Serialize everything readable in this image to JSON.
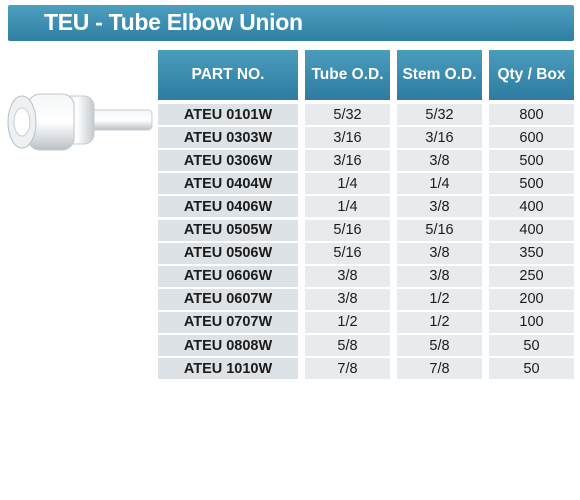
{
  "title": "TEU - Tube Elbow Union",
  "table": {
    "header": [
      "PART NO.",
      "Tube O.D.",
      "Stem O.D.",
      "Qty / Box"
    ],
    "rows": [
      [
        "ATEU 0101W",
        "5/32",
        "5/32",
        800
      ],
      [
        "ATEU 0303W",
        "3/16",
        "3/16",
        600
      ],
      [
        "ATEU 0306W",
        "3/16",
        "3/8",
        500
      ],
      [
        "ATEU 0404W",
        "1/4",
        "1/4",
        500
      ],
      [
        "ATEU 0406W",
        "1/4",
        "3/8",
        400
      ],
      [
        "ATEU 0505W",
        "5/16",
        "5/16",
        400
      ],
      [
        "ATEU 0506W",
        "5/16",
        "3/8",
        350
      ],
      [
        "ATEU 0606W",
        "3/8",
        "3/8",
        250
      ],
      [
        "ATEU 0607W",
        "3/8",
        "1/2",
        200
      ],
      [
        "ATEU 0707W",
        "1/2",
        "1/2",
        100
      ],
      [
        "ATEU 0808W",
        "5/8",
        "5/8",
        50
      ],
      [
        "ATEU 1010W",
        "7/8",
        "7/8",
        50
      ]
    ]
  }
}
